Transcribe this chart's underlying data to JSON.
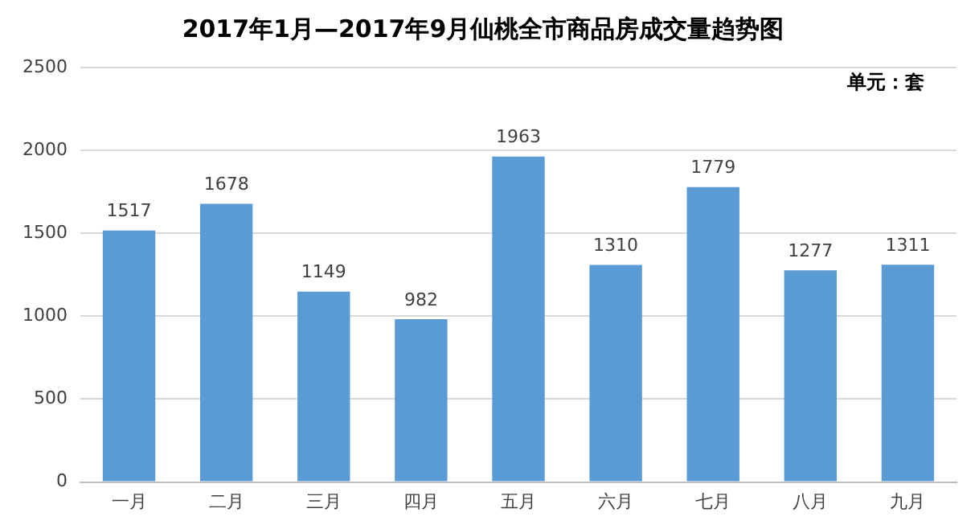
{
  "chart_data": {
    "type": "bar",
    "title": "2017年1月—2017年9月仙桃全市商品房成交量趋势图",
    "categories": [
      "一月",
      "二月",
      "三月",
      "四月",
      "五月",
      "六月",
      "七月",
      "八月",
      "九月"
    ],
    "values": [
      1517,
      1678,
      1149,
      982,
      1963,
      1310,
      1779,
      1277,
      1311
    ],
    "color": "#5b9bd5",
    "ylim": [
      0,
      2500
    ],
    "yticks": [
      0,
      500,
      1000,
      1500,
      2000,
      2500
    ],
    "grid": "y",
    "data_labels": true,
    "legend": false,
    "annotations": [
      "单元：套"
    ]
  }
}
